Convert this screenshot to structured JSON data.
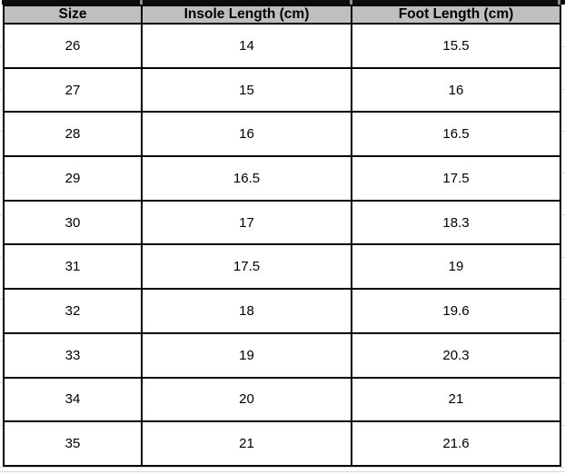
{
  "chart_data": {
    "type": "table",
    "title": "",
    "columns": [
      "Size",
      "Insole Length (cm)",
      "Foot Length (cm)"
    ],
    "rows": [
      [
        "26",
        "14",
        "15.5"
      ],
      [
        "27",
        "15",
        "16"
      ],
      [
        "28",
        "16",
        "16.5"
      ],
      [
        "29",
        "16.5",
        "17.5"
      ],
      [
        "30",
        "17",
        "18.3"
      ],
      [
        "31",
        "17.5",
        "19"
      ],
      [
        "32",
        "18",
        "19.6"
      ],
      [
        "33",
        "19",
        "20.3"
      ],
      [
        "34",
        "20",
        "21"
      ],
      [
        "35",
        "21",
        "21.6"
      ]
    ]
  },
  "colors": {
    "header_bg": "#bfbfbf",
    "border": "#000000",
    "top_strip": "#0c0c0c",
    "strip_gap": "#8f8f8f",
    "gridline": "#d9d9d9",
    "text": "#000000"
  }
}
